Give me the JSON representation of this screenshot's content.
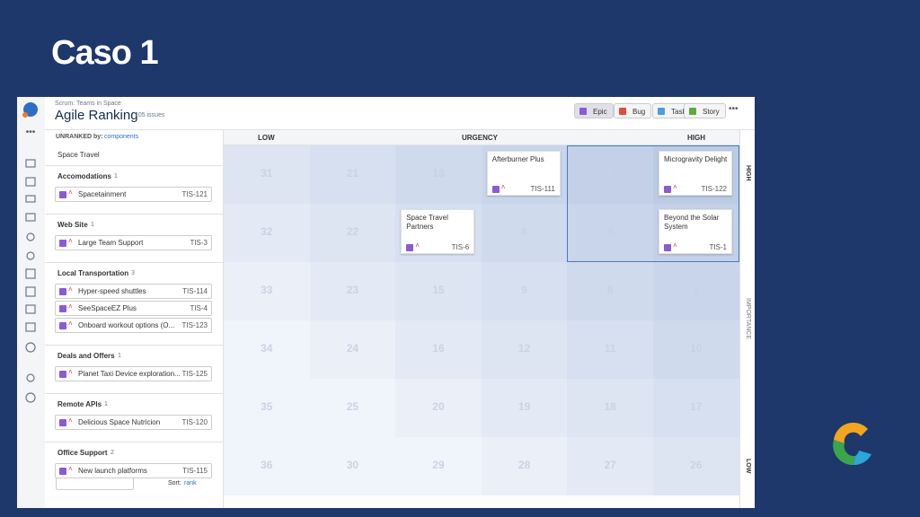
{
  "slide_title": "Caso 1",
  "app": {
    "breadcrumb": "Scrum: Teams in Space",
    "title": "Agile Ranking",
    "issue_count": "105 issues",
    "filters": [
      "Epic",
      "Bug",
      "Task",
      "Story"
    ],
    "sidebar": {
      "label": "UNRANKED by:",
      "group_by": "components",
      "section": "Space Travel",
      "groups": [
        {
          "name": "Accomodations",
          "count": 1,
          "items": [
            {
              "title": "Spacetainment",
              "key": "TIS-121"
            }
          ]
        },
        {
          "name": "Web Site",
          "count": 1,
          "items": [
            {
              "title": "Large Team Support",
              "key": "TIS-3"
            }
          ]
        },
        {
          "name": "Local Transportation",
          "count": 3,
          "items": [
            {
              "title": "Hyper-speed shuttles",
              "key": "TIS-114"
            },
            {
              "title": "SeeSpaceEZ Plus",
              "key": "TIS-4"
            },
            {
              "title": "Onboard workout options (O...",
              "key": "TIS-123"
            }
          ]
        },
        {
          "name": "Deals and Offers",
          "count": 1,
          "items": [
            {
              "title": "Planet Taxi Device exploration...",
              "key": "TIS-125"
            }
          ]
        },
        {
          "name": "Remote APIs",
          "count": 1,
          "items": [
            {
              "title": "Delicious Space Nutricion",
              "key": "TIS-120"
            }
          ]
        },
        {
          "name": "Office Support",
          "count": 2,
          "items": [
            {
              "title": "New launch platforms",
              "key": "TIS-115"
            }
          ]
        }
      ],
      "sort_label": "Sort:",
      "sort_value": "rank"
    },
    "board": {
      "x_axis": {
        "low": "LOW",
        "label": "URGENCY",
        "high": "HIGH"
      },
      "y_axis": {
        "high": "HIGH",
        "label": "IMPORTANCE",
        "low": "LOW"
      },
      "rows": [
        [
          31,
          21,
          13,
          {
            "title": "Afterburner Plus",
            "key": "TIS-111"
          },
          3,
          {
            "title": "Microgravity Delight",
            "key": "TIS-122"
          }
        ],
        [
          32,
          22,
          {
            "title": "Space Travel Partners",
            "key": "TIS-6"
          },
          8,
          4,
          {
            "title": "Beyond the Solar System",
            "key": "TIS-1"
          }
        ],
        [
          33,
          23,
          15,
          9,
          6,
          5
        ],
        [
          34,
          24,
          16,
          12,
          11,
          10
        ],
        [
          35,
          25,
          20,
          19,
          18,
          17
        ],
        [
          36,
          30,
          29,
          28,
          27,
          26
        ]
      ]
    }
  }
}
